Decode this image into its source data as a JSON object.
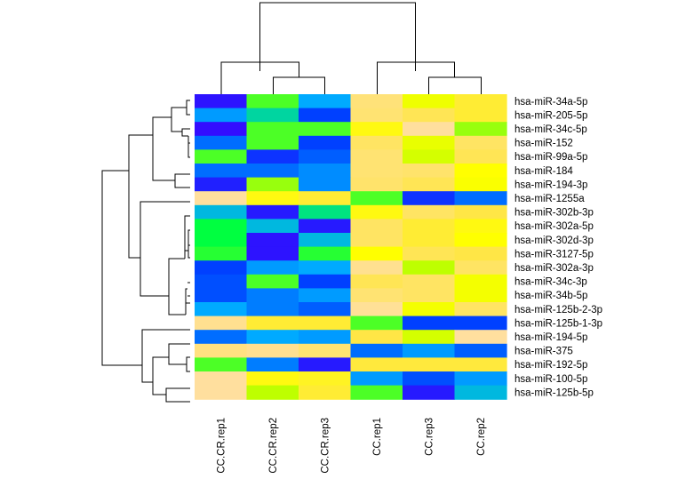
{
  "chart_data": {
    "type": "heatmap",
    "title": "",
    "xlabel": "",
    "ylabel": "",
    "columns": [
      "CC.CR.rep1",
      "CC.CR.rep2",
      "CC.CR.rep3",
      "CC.rep1",
      "CC.rep3",
      "CC.rep2"
    ],
    "rows": [
      "hsa-miR-34a-5p",
      "hsa-miR-205-5p",
      "hsa-miR-34c-5p",
      "hsa-miR-152",
      "hsa-miR-99a-5p",
      "hsa-miR-184",
      "hsa-miR-194-3p",
      "hsa-miR-1255a",
      "hsa-miR-302b-3p",
      "hsa-miR-302a-5p",
      "hsa-miR-302d-3p",
      "hsa-miR-3127-5p",
      "hsa-miR-302a-3p",
      "hsa-miR-34c-3p",
      "hsa-miR-34b-5p",
      "hsa-miR-125b-2-3p",
      "hsa-miR-125b-1-3p",
      "hsa-miR-194-5p",
      "hsa-miR-375",
      "hsa-miR-192-5p",
      "hsa-miR-100-5p",
      "hsa-miR-125b-5p"
    ],
    "color_scale": {
      "type": "diverging",
      "low": "#0000FF",
      "mid_low": "#00FF00",
      "mid": "#FFFF00",
      "high": "#FFDEAD",
      "range": [
        -2,
        2
      ]
    },
    "values": [
      [
        -1.85,
        0.0,
        -0.8,
        1.65,
        0.75,
        1.2
      ],
      [
        -0.9,
        -0.5,
        -1.5,
        1.6,
        1.4,
        1.2
      ],
      [
        -1.9,
        0.0,
        0.0,
        1.0,
        1.9,
        0.2
      ],
      [
        -1.2,
        0.0,
        -1.5,
        1.5,
        0.7,
        1.5
      ],
      [
        0.0,
        -1.6,
        -1.3,
        1.6,
        0.5,
        1.4
      ],
      [
        -1.2,
        -1.2,
        -1.0,
        1.6,
        1.55,
        0.9
      ],
      [
        -1.75,
        0.2,
        -1.0,
        1.55,
        1.4,
        0.85
      ],
      [
        1.9,
        1.0,
        1.2,
        0.0,
        -1.6,
        -1.2
      ],
      [
        -0.7,
        -1.8,
        -0.4,
        1.0,
        1.5,
        1.3
      ],
      [
        -0.2,
        -0.7,
        -1.8,
        1.5,
        1.2,
        1.0
      ],
      [
        -0.2,
        -1.85,
        -0.7,
        1.5,
        1.2,
        0.9
      ],
      [
        -0.1,
        -1.85,
        -0.1,
        0.9,
        1.4,
        1.3
      ],
      [
        -1.5,
        -0.9,
        -0.8,
        1.8,
        0.3,
        1.5
      ],
      [
        -1.4,
        0.0,
        -1.5,
        1.4,
        1.5,
        0.8
      ],
      [
        -1.4,
        -1.1,
        -0.9,
        1.6,
        1.5,
        0.8
      ],
      [
        -0.8,
        -1.1,
        -1.3,
        1.85,
        0.8,
        1.5
      ],
      [
        1.8,
        1.2,
        1.2,
        0.0,
        -1.5,
        -1.5
      ],
      [
        -1.2,
        -0.8,
        -0.9,
        1.3,
        0.5,
        1.9
      ],
      [
        1.7,
        1.8,
        1.6,
        -1.2,
        -0.9,
        -1.3
      ],
      [
        0.0,
        -1.1,
        -1.8,
        1.25,
        1.25,
        1.25
      ],
      [
        1.9,
        1.0,
        1.1,
        -0.9,
        -1.4,
        -0.9
      ],
      [
        1.9,
        0.3,
        1.2,
        0.0,
        -1.8,
        -0.7
      ]
    ],
    "legend": "none"
  }
}
